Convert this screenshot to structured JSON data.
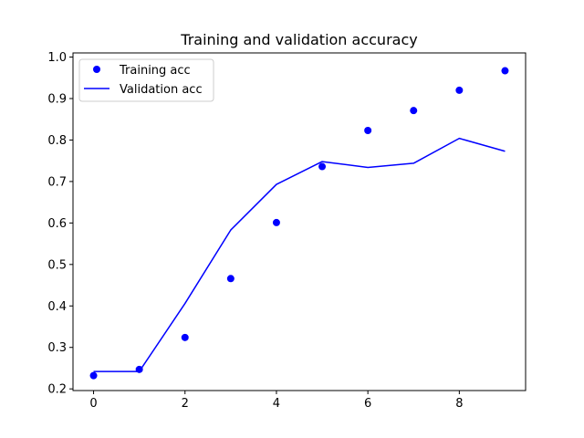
{
  "chart_data": {
    "type": "line",
    "title": "Training and validation accuracy",
    "xlabel": "",
    "ylabel": "",
    "xlim": [
      -0.45,
      9.45
    ],
    "ylim": [
      0.196,
      1.01
    ],
    "xticks": [
      "0",
      "2",
      "4",
      "6",
      "8"
    ],
    "yticks": [
      "0.2",
      "0.3",
      "0.4",
      "0.5",
      "0.6",
      "0.7",
      "0.8",
      "0.9",
      "1.0"
    ],
    "grid": false,
    "legend_position": "top-left",
    "series": [
      {
        "name": "Training acc",
        "style": "markers",
        "color": "#0000ff",
        "x": [
          0,
          1,
          2,
          3,
          4,
          5,
          6,
          7,
          8,
          9
        ],
        "y": [
          0.232,
          0.247,
          0.324,
          0.466,
          0.601,
          0.736,
          0.823,
          0.871,
          0.92,
          0.967
        ]
      },
      {
        "name": "Validation acc",
        "style": "line",
        "color": "#0000ff",
        "x": [
          0,
          1,
          2,
          3,
          4,
          5,
          6,
          7,
          8,
          9
        ],
        "y": [
          0.242,
          0.242,
          0.406,
          0.583,
          0.693,
          0.748,
          0.734,
          0.744,
          0.804,
          0.773
        ]
      }
    ]
  }
}
